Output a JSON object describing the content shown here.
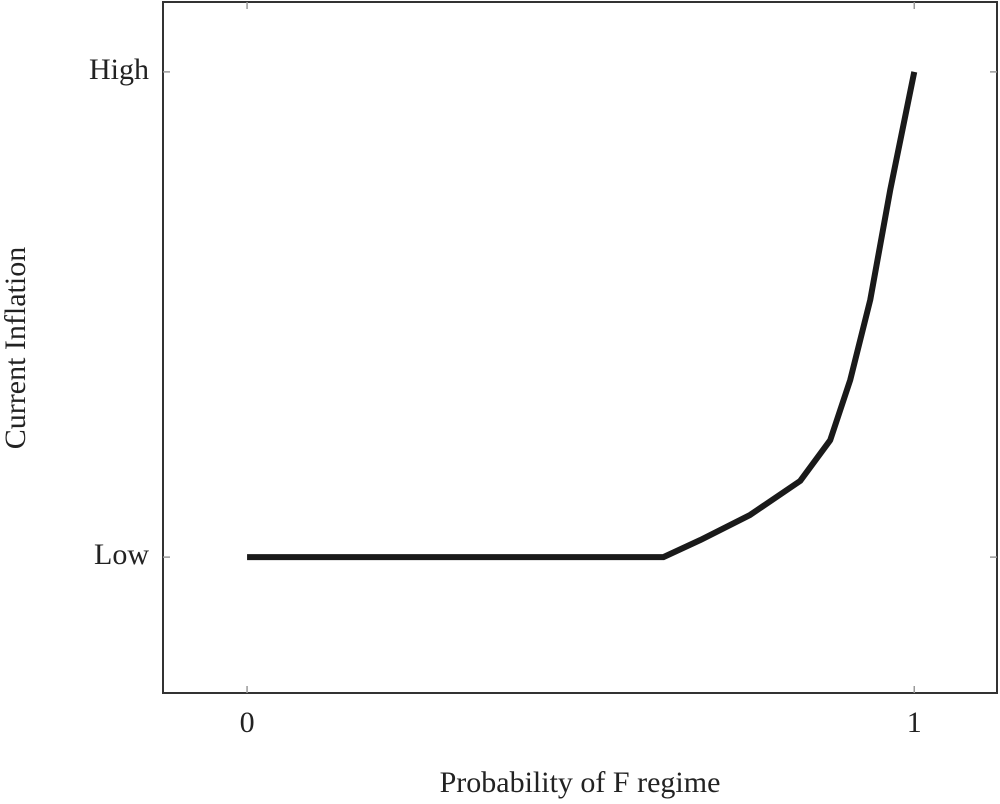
{
  "chart_data": {
    "type": "line",
    "x_label": "Probability of F regime",
    "y_label": "Current Inflation",
    "x": [
      0,
      0.624,
      0.679,
      0.754,
      0.829,
      0.874,
      0.904,
      0.934,
      0.964,
      1
    ],
    "series": [
      {
        "color": "#1a1a1a",
        "values": [
          0,
          0,
          0.035,
          0.087,
          0.157,
          0.241,
          0.365,
          0.53,
          0.757,
          1
        ]
      }
    ],
    "xlim": [
      -0.126,
      1.124
    ],
    "ylim": [
      -0.28,
      1.144
    ],
    "xticks": [
      0,
      1
    ],
    "yticks": [
      {
        "value": 0,
        "label": "Low"
      },
      {
        "value": 1,
        "label": "High"
      }
    ],
    "grid": false
  }
}
